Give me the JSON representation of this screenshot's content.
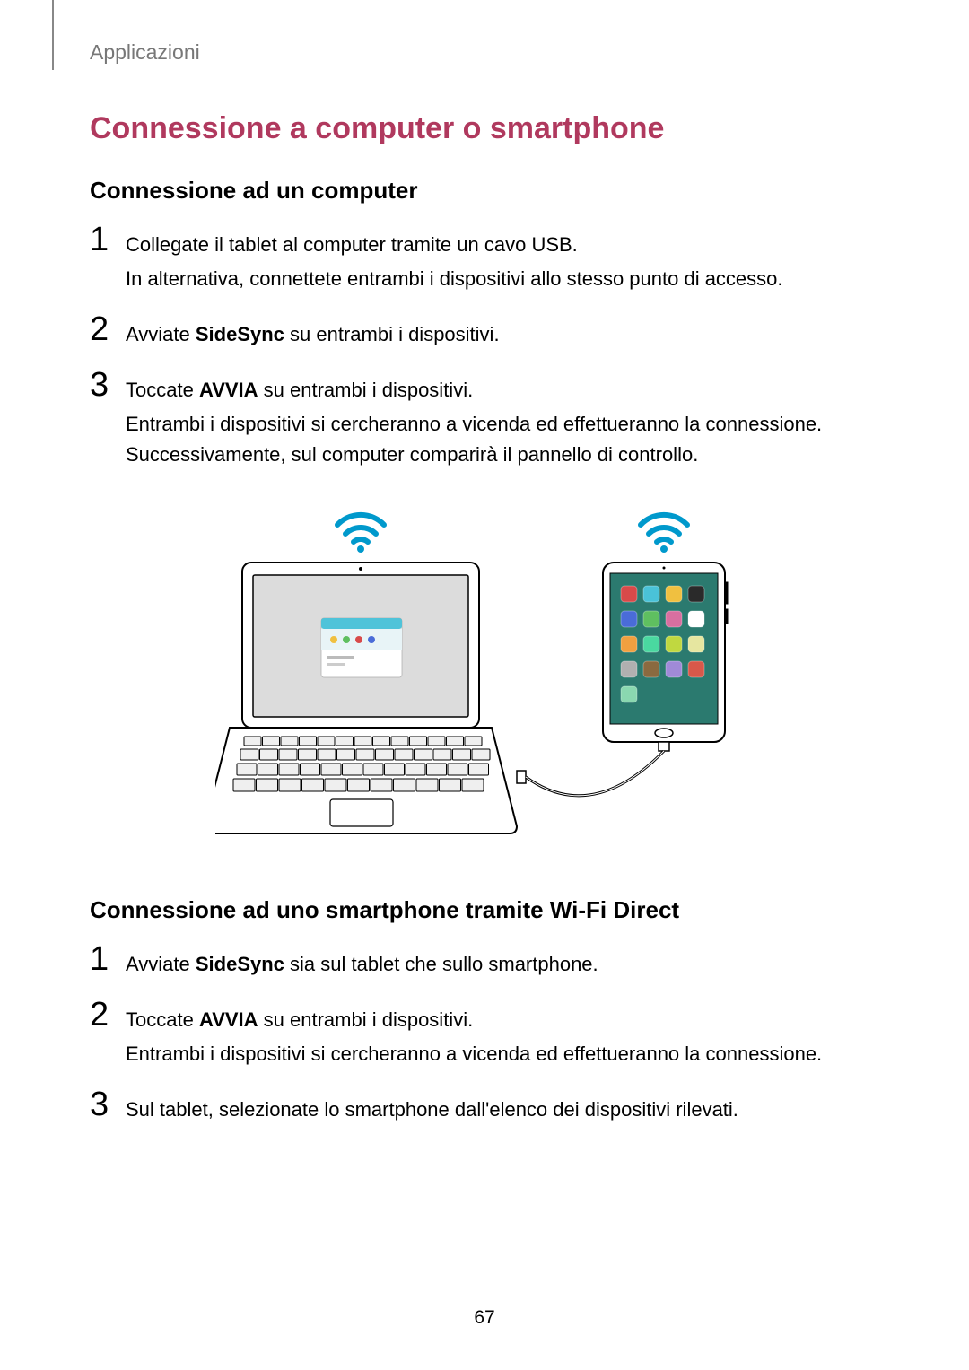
{
  "breadcrumb": "Applicazioni",
  "main_heading": {
    "text": "Connessione a computer o smartphone",
    "color": "#b0395e"
  },
  "section_a": {
    "heading": "Connessione ad un computer",
    "steps": [
      {
        "num": "1",
        "lines": [
          {
            "pre": "Collegate il tablet al computer tramite un cavo USB."
          },
          {
            "pre": "In alternativa, connettete entrambi i dispositivi allo stesso punto di accesso."
          }
        ]
      },
      {
        "num": "2",
        "lines": [
          {
            "pre": "Avviate ",
            "bold": "SideSync",
            "post": " su entrambi i dispositivi."
          }
        ]
      },
      {
        "num": "3",
        "lines": [
          {
            "pre": "Toccate ",
            "bold": "AVVIA",
            "post": " su entrambi i dispositivi."
          },
          {
            "pre": "Entrambi i dispositivi si cercheranno a vicenda ed effettueranno la connessione. Successivamente, sul computer comparirà il pannello di controllo."
          }
        ]
      }
    ]
  },
  "section_b": {
    "heading": "Connessione ad uno smartphone tramite Wi-Fi Direct",
    "steps": [
      {
        "num": "1",
        "lines": [
          {
            "pre": "Avviate ",
            "bold": "SideSync",
            "post": " sia sul tablet che sullo smartphone."
          }
        ]
      },
      {
        "num": "2",
        "lines": [
          {
            "pre": "Toccate ",
            "bold": "AVVIA",
            "post": " su entrambi i dispositivi."
          },
          {
            "pre": "Entrambi i dispositivi si cercheranno a vicenda ed effettueranno la connessione."
          }
        ]
      },
      {
        "num": "3",
        "lines": [
          {
            "pre": "Sul tablet, selezionate lo smartphone dall'elenco dei dispositivi rilevati."
          }
        ]
      }
    ]
  },
  "figure": {
    "type": "diagram",
    "wifi_color": "#0099cc",
    "stroke_color": "#000000",
    "laptop_screen_fill": "#dcdcdc",
    "keyboard_fill": "#efefef",
    "tablet_bg": "#2b7a6f",
    "app_icon_colors": [
      "#d84a4a",
      "#4ac2d8",
      "#f0c040",
      "#2a2a2a",
      "#4a6cd8",
      "#5fbf60",
      "#d86fa0",
      "#ffffff",
      "#f0a040",
      "#4ad8a0",
      "#c0d840",
      "#e6e6a0",
      "#b0b0b0",
      "#8a6a40",
      "#a08ad8",
      "#d8584a",
      "#8ad8b0"
    ],
    "sidesync_window": {
      "header_fill": "#4fc3d9",
      "dot_colors": [
        "#f0c040",
        "#5fbf60",
        "#d84a4a",
        "#4a6cd8"
      ]
    }
  },
  "page_number": "67"
}
